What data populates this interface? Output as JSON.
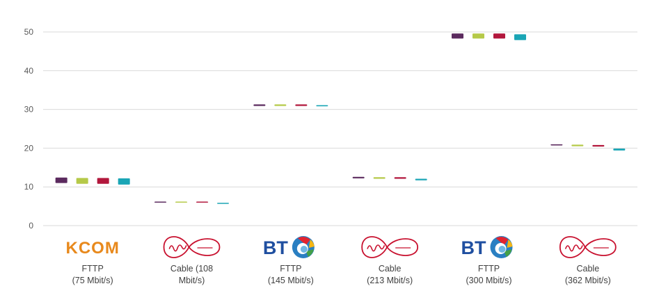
{
  "chart_data": {
    "type": "bar",
    "title": "",
    "xlabel": "",
    "ylabel": "",
    "ylim": [
      0,
      50
    ],
    "yticks": [
      0,
      10,
      20,
      30,
      40,
      50
    ],
    "grid": true,
    "legend": "none",
    "categories": [
      {
        "logo": "KCOM",
        "logo_kind": "kcom-wordmark",
        "label_lines": [
          "FTTP",
          "(75 Mbit/s)"
        ]
      },
      {
        "logo": "Virgin media",
        "logo_kind": "virgin-media-logo",
        "label_lines": [
          "Cable (108",
          "Mbit/s)"
        ]
      },
      {
        "logo": "BT",
        "logo_kind": "bt-logo",
        "label_lines": [
          "FTTP",
          "(145 Mbit/s)"
        ]
      },
      {
        "logo": "Virgin media",
        "logo_kind": "virgin-media-logo",
        "label_lines": [
          "Cable",
          "(213 Mbit/s)"
        ]
      },
      {
        "logo": "BT",
        "logo_kind": "bt-logo",
        "label_lines": [
          "FTTP",
          "(300 Mbit/s)"
        ]
      },
      {
        "logo": "Virgin media",
        "logo_kind": "virgin-media-logo",
        "label_lines": [
          "Cable",
          "(362 Mbit/s)"
        ]
      }
    ],
    "series": [
      {
        "color": "#5b2a5e",
        "values": [
          [
            11.0,
            12.4
          ],
          [
            6.0,
            6.2
          ],
          [
            30.9,
            31.3
          ],
          [
            12.2,
            12.6
          ],
          [
            48.3,
            49.6
          ],
          [
            20.7,
            21.0
          ]
        ]
      },
      {
        "color": "#b5c948",
        "values": [
          [
            10.8,
            12.3
          ],
          [
            6.0,
            6.2
          ],
          [
            30.9,
            31.3
          ],
          [
            12.1,
            12.5
          ],
          [
            48.3,
            49.6
          ],
          [
            20.5,
            20.9
          ]
        ]
      },
      {
        "color": "#b2173c",
        "values": [
          [
            10.8,
            12.3
          ],
          [
            6.0,
            6.2
          ],
          [
            30.9,
            31.3
          ],
          [
            12.1,
            12.5
          ],
          [
            48.3,
            49.6
          ],
          [
            20.4,
            20.8
          ]
        ]
      },
      {
        "color": "#1aa5b5",
        "values": [
          [
            10.6,
            12.2
          ],
          [
            5.7,
            5.9
          ],
          [
            30.8,
            31.1
          ],
          [
            11.7,
            12.1
          ],
          [
            47.9,
            49.4
          ],
          [
            19.4,
            19.9
          ]
        ]
      }
    ],
    "colors": {
      "kcom": "#e8891c",
      "bt_text": "#1f4fa0",
      "virgin": "#c8102e"
    }
  }
}
